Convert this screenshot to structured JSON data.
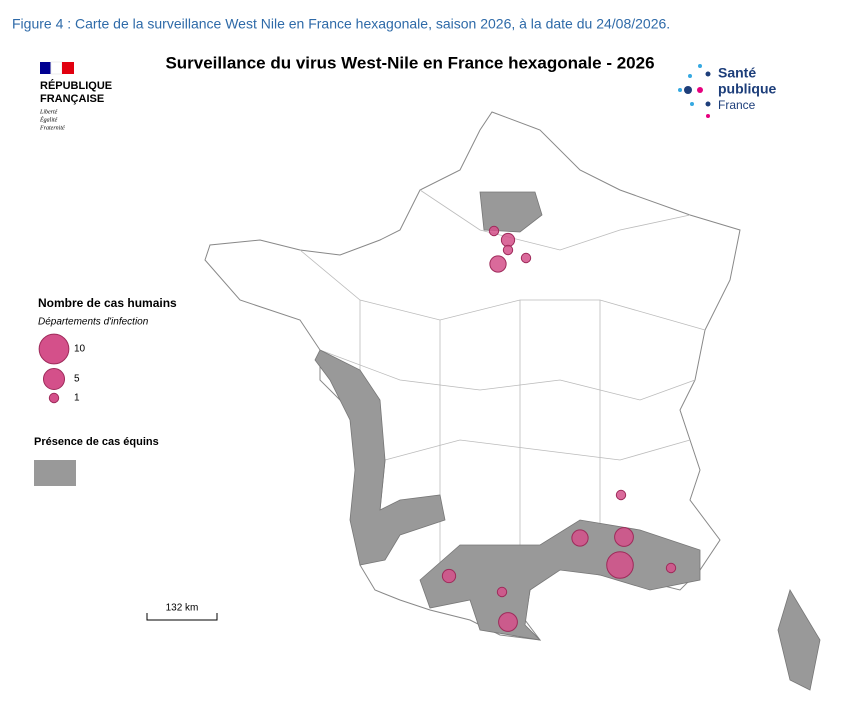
{
  "caption": "Figure 4 : Carte de la surveillance West Nile en France hexagonale, saison 2026, à la date du 24/08/2026.",
  "header": {
    "title": "Surveillance du virus West-Nile en France hexagonale - 2026",
    "republique": [
      "RÉPUBLIQUE",
      "FRANÇAISE"
    ],
    "motto": [
      "Liberté",
      "Égalité",
      "Fraternité"
    ],
    "sante": [
      "Santé",
      "publique",
      "France"
    ]
  },
  "legend": {
    "title": "Nombre de cas humains",
    "subtitle": "Départements d'infection",
    "sizes": [
      10,
      5,
      1
    ],
    "equine_title": "Présence de cas équins"
  },
  "scale": "132 km",
  "cases": [
    1,
    2,
    1,
    1,
    3,
    1,
    3,
    4,
    8,
    2,
    1,
    1,
    4
  ]
}
